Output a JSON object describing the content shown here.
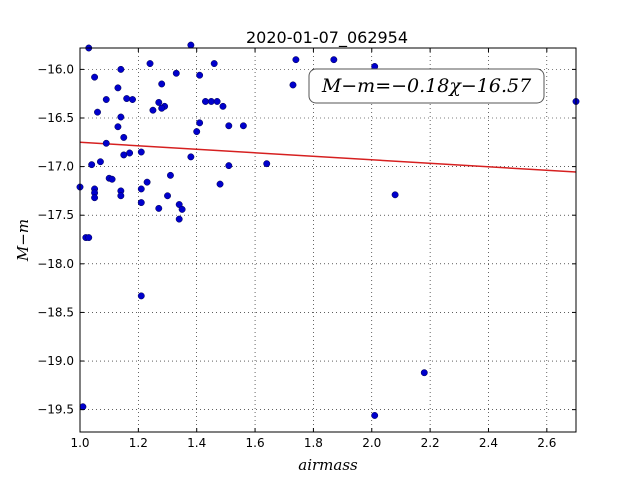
{
  "chart_data": {
    "type": "scatter",
    "title": "2020-01-07_062954",
    "xlabel": "airmass",
    "ylabel": "M−m",
    "xlim": [
      1.0,
      2.7
    ],
    "ylim": [
      -15.78,
      -19.73
    ],
    "y_inverted": true,
    "grid": true,
    "x_ticks": [
      1.0,
      1.2,
      1.4,
      1.6,
      1.8,
      2.0,
      2.2,
      2.4,
      2.6
    ],
    "x_tick_labels": [
      "1.0",
      "1.2",
      "1.4",
      "1.6",
      "1.8",
      "2.0",
      "2.2",
      "2.4",
      "2.6"
    ],
    "y_ticks": [
      -16.0,
      -16.5,
      -17.0,
      -17.5,
      -18.0,
      -18.5,
      -19.0,
      -19.5
    ],
    "y_tick_labels": [
      "−16.0",
      "−16.5",
      "−17.0",
      "−17.5",
      "−18.0",
      "−18.5",
      "−19.0",
      "−19.5"
    ],
    "annotation": "M−m=−0.18χ−16.57",
    "fit": {
      "slope": -0.18,
      "intercept": -16.57,
      "color": "#d62020"
    },
    "point_color": "#0000cc",
    "points": [
      [
        1.03,
        -15.78
      ],
      [
        1.38,
        -15.75
      ],
      [
        1.05,
        -16.08
      ],
      [
        1.14,
        -16.0
      ],
      [
        1.24,
        -15.94
      ],
      [
        1.33,
        -16.04
      ],
      [
        1.41,
        -16.06
      ],
      [
        1.46,
        -15.94
      ],
      [
        1.74,
        -15.9
      ],
      [
        1.87,
        -15.9
      ],
      [
        2.01,
        -15.97
      ],
      [
        1.73,
        -16.16
      ],
      [
        1.09,
        -16.31
      ],
      [
        1.13,
        -16.19
      ],
      [
        1.16,
        -16.3
      ],
      [
        1.18,
        -16.31
      ],
      [
        1.06,
        -16.44
      ],
      [
        1.27,
        -16.34
      ],
      [
        1.28,
        -16.15
      ],
      [
        1.29,
        -16.38
      ],
      [
        1.28,
        -16.4
      ],
      [
        1.25,
        -16.42
      ],
      [
        1.43,
        -16.33
      ],
      [
        1.45,
        -16.33
      ],
      [
        1.47,
        -16.33
      ],
      [
        1.49,
        -16.38
      ],
      [
        1.41,
        -16.55
      ],
      [
        1.4,
        -16.64
      ],
      [
        1.51,
        -16.58
      ],
      [
        1.56,
        -16.58
      ],
      [
        2.7,
        -16.33
      ],
      [
        1.13,
        -16.59
      ],
      [
        1.14,
        -16.49
      ],
      [
        1.15,
        -16.7
      ],
      [
        1.09,
        -16.76
      ],
      [
        1.15,
        -16.88
      ],
      [
        1.17,
        -16.86
      ],
      [
        1.21,
        -16.85
      ],
      [
        1.38,
        -16.9
      ],
      [
        1.07,
        -16.95
      ],
      [
        1.04,
        -16.98
      ],
      [
        1.51,
        -16.99
      ],
      [
        1.64,
        -16.97
      ],
      [
        1.1,
        -17.12
      ],
      [
        1.11,
        -17.13
      ],
      [
        1.31,
        -17.09
      ],
      [
        1.23,
        -17.16
      ],
      [
        1.48,
        -17.18
      ],
      [
        1.21,
        -17.23
      ],
      [
        1.0,
        -17.21
      ],
      [
        1.05,
        -17.23
      ],
      [
        1.05,
        -17.27
      ],
      [
        1.14,
        -17.25
      ],
      [
        1.14,
        -17.3
      ],
      [
        1.05,
        -17.32
      ],
      [
        1.3,
        -17.3
      ],
      [
        2.08,
        -17.29
      ],
      [
        1.21,
        -17.37
      ],
      [
        1.34,
        -17.39
      ],
      [
        1.27,
        -17.43
      ],
      [
        1.35,
        -17.44
      ],
      [
        1.34,
        -17.54
      ],
      [
        1.02,
        -17.73
      ],
      [
        1.03,
        -17.73
      ],
      [
        1.21,
        -18.33
      ],
      [
        2.18,
        -19.12
      ],
      [
        1.01,
        -19.47
      ],
      [
        2.01,
        -19.56
      ]
    ]
  }
}
